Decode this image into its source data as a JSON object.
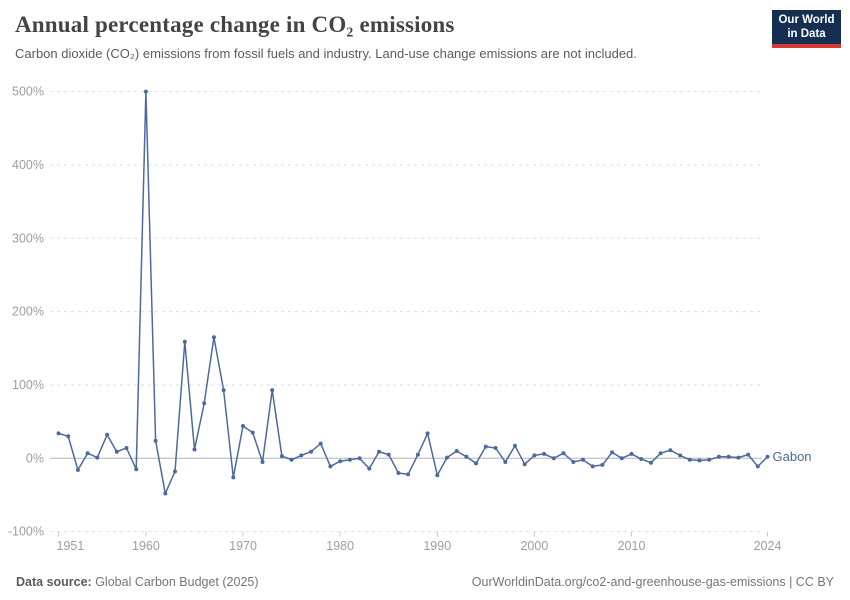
{
  "header": {
    "title": "Annual percentage change in CO₂ emissions",
    "subtitle": "Carbon dioxide (CO₂) emissions from fossil fuels and industry. Land-use change emissions are not included.",
    "logo": {
      "line1": "Our World",
      "line2": "in Data"
    }
  },
  "chart_data": {
    "type": "line",
    "title": "Annual percentage change in CO₂ emissions",
    "series_label": "Gabon",
    "x": [
      1951,
      1952,
      1953,
      1954,
      1955,
      1956,
      1957,
      1958,
      1959,
      1960,
      1961,
      1962,
      1963,
      1964,
      1965,
      1966,
      1967,
      1968,
      1969,
      1970,
      1971,
      1972,
      1973,
      1974,
      1975,
      1976,
      1977,
      1978,
      1979,
      1980,
      1981,
      1982,
      1983,
      1984,
      1985,
      1986,
      1987,
      1988,
      1989,
      1990,
      1991,
      1992,
      1993,
      1994,
      1995,
      1996,
      1997,
      1998,
      1999,
      2000,
      2001,
      2002,
      2003,
      2004,
      2005,
      2006,
      2007,
      2008,
      2009,
      2010,
      2011,
      2012,
      2013,
      2014,
      2015,
      2016,
      2017,
      2018,
      2019,
      2020,
      2021,
      2022,
      2023,
      2024
    ],
    "values": [
      34,
      30,
      -16,
      7,
      1,
      32,
      9,
      14,
      -15,
      500,
      24,
      -48,
      -18,
      159,
      12,
      75,
      165,
      93,
      -26,
      44,
      35,
      -5,
      93,
      3,
      -2,
      4,
      9,
      20,
      -11,
      -4,
      -2,
      0,
      -14,
      9,
      5,
      -20,
      -22,
      5,
      34,
      -23,
      1,
      10,
      2,
      -7,
      16,
      14,
      -5,
      17,
      -8,
      4,
      6,
      0,
      7,
      -5,
      -2,
      -11,
      -9,
      8,
      0,
      6,
      -1,
      -6,
      7,
      11,
      4,
      -2,
      -3,
      -2,
      2,
      2,
      1,
      5,
      -11,
      2
    ],
    "unit": "%",
    "ylim": [
      -100,
      500
    ],
    "yticks": [
      500,
      400,
      300,
      200,
      100,
      0,
      -100
    ],
    "xticks": [
      1951,
      1960,
      1970,
      1980,
      1990,
      2000,
      2010,
      2024
    ],
    "grid": "horizontal-dashed",
    "zero_line": true,
    "legend_position": "end-of-line",
    "line_color": "#4d6a9e",
    "grid_color": "#dddddd",
    "zero_line_color": "#c9c9c9",
    "tick_label_color": "#9e9e9e"
  },
  "footer": {
    "datasource_label": "Data source:",
    "datasource_value": " Global Carbon Budget (2025)",
    "link": "OurWorldinData.org/co2-and-greenhouse-gas-emissions | CC BY"
  }
}
